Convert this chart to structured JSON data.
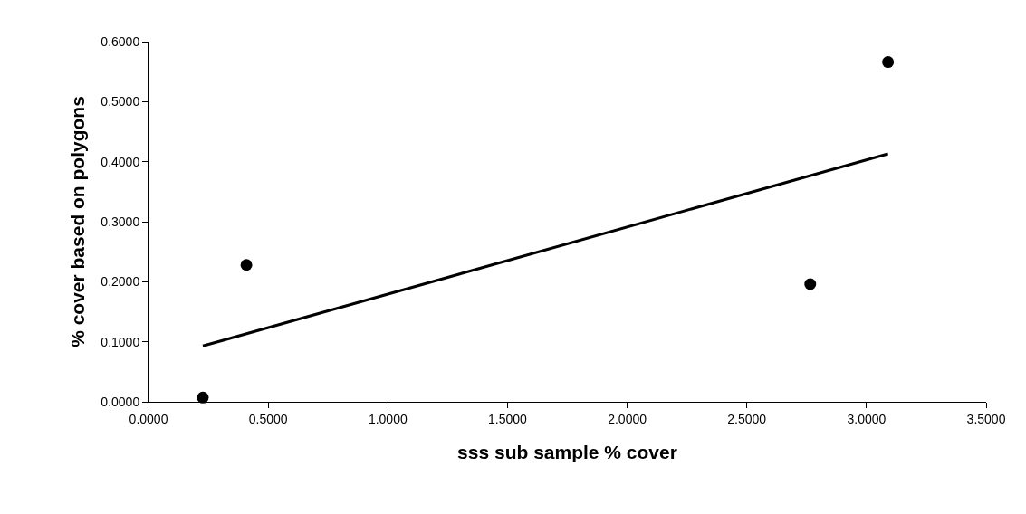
{
  "chart_data": {
    "type": "scatter",
    "xlabel": "sss sub sample % cover",
    "ylabel": "% cover based on polygons",
    "x": [
      0.227,
      0.409,
      2.765,
      3.09
    ],
    "series": [
      {
        "color": "#000000",
        "values": [
          0.007,
          0.228,
          0.196,
          0.566
        ],
        "marker": "circle"
      },
      {
        "type": "line",
        "color": "#000000",
        "x": [
          0.227,
          3.09
        ],
        "values": [
          0.093,
          0.413
        ],
        "marker": "none",
        "line_style": "solid"
      }
    ],
    "xlim": [
      0,
      3.5
    ],
    "ylim": [
      0,
      0.6
    ],
    "xticks": [
      {
        "value": 0,
        "label": "0.0000"
      },
      {
        "value": 0.5,
        "label": "0.5000"
      },
      {
        "value": 1,
        "label": "1.0000"
      },
      {
        "value": 1.5,
        "label": "1.5000"
      },
      {
        "value": 2,
        "label": "2.0000"
      },
      {
        "value": 2.5,
        "label": "2.5000"
      },
      {
        "value": 3,
        "label": "3.0000"
      },
      {
        "value": 3.5,
        "label": "3.5000"
      }
    ],
    "yticks": [
      {
        "value": 0,
        "label": "0.0000"
      },
      {
        "value": 0.1,
        "label": "0.1000"
      },
      {
        "value": 0.2,
        "label": "0.2000"
      },
      {
        "value": 0.3,
        "label": "0.3000"
      },
      {
        "value": 0.4,
        "label": "0.4000"
      },
      {
        "value": 0.5,
        "label": "0.5000"
      },
      {
        "value": 0.6,
        "label": "0.6000"
      }
    ],
    "grid": false
  }
}
